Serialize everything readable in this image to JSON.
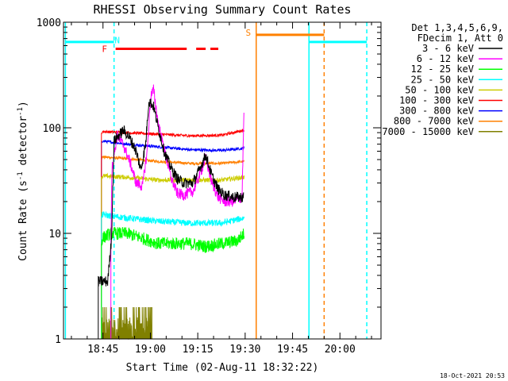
{
  "chart_data": {
    "type": "line",
    "title": "RHESSI Observing Summary Count Rates",
    "xlabel": "Start Time (02-Aug-11 18:32:22)",
    "ylabel_main": "Count Rate (s",
    "ylabel_sup1": "-1",
    "ylabel_mid": " detector",
    "ylabel_sup2": "-1",
    "ylabel_end": ")",
    "y_scale": "log",
    "ylim": [
      1,
      1000
    ],
    "xlim_minutes": [
      0,
      100.5
    ],
    "x_ticks": [
      {
        "min": 12.5,
        "label": "18:45"
      },
      {
        "min": 27.5,
        "label": "19:00"
      },
      {
        "min": 42.5,
        "label": "19:15"
      },
      {
        "min": 57.5,
        "label": "19:30"
      },
      {
        "min": 72.5,
        "label": "19:45"
      },
      {
        "min": 87.5,
        "label": "20:00"
      }
    ],
    "y_ticks": [
      {
        "v": 1,
        "label": "1"
      },
      {
        "v": 10,
        "label": "10"
      },
      {
        "v": 100,
        "label": "100"
      },
      {
        "v": 1000,
        "label": "1000"
      }
    ],
    "legend": {
      "position": "right",
      "header": [
        "Det 1,3,4,5,6,9,",
        "FDecim 1, Att 0"
      ],
      "entries": [
        {
          "label": "3 - 6 keV",
          "color": "#000000"
        },
        {
          "label": "6 - 12 keV",
          "color": "#ff00ff"
        },
        {
          "label": "12 - 25 keV",
          "color": "#00ff00"
        },
        {
          "label": "25 - 50 keV",
          "color": "#00ffff"
        },
        {
          "label": "50 - 100 keV",
          "color": "#cccc00"
        },
        {
          "label": "100 - 300 keV",
          "color": "#ff0000"
        },
        {
          "label": "300 - 800 keV",
          "color": "#0000ff"
        },
        {
          "label": "800 - 7000 keV",
          "color": "#ff8000"
        },
        {
          "label": "7000 - 15000 keV",
          "color": "#808000"
        }
      ]
    },
    "series": [
      {
        "name": "3 - 6 keV",
        "color": "#000000",
        "noise": 0.12,
        "x": [
          11.0,
          14.0,
          15.2,
          16.0,
          19.0,
          21.0,
          23.0,
          24.5,
          26.0,
          27.0,
          28.5,
          30.0,
          32.0,
          34.0,
          36.0,
          38.0,
          41.0,
          43.0,
          45.0,
          47.0,
          49.0,
          51.0,
          54.0,
          57.0
        ],
        "y": [
          3.5,
          3.5,
          9.0,
          75,
          95,
          80,
          60,
          40,
          70,
          180,
          160,
          100,
          58,
          42,
          33,
          30,
          30,
          40,
          55,
          35,
          26,
          23,
          22,
          22
        ]
      },
      {
        "name": "6 - 12 keV",
        "color": "#ff00ff",
        "noise": 0.12,
        "x": [
          15.0,
          15.3,
          17.0,
          19.0,
          21.0,
          23.0,
          25.0,
          26.5,
          27.6,
          28.5,
          30.0,
          32.0,
          34.0,
          36.0,
          38.0,
          41.0,
          43.0,
          45.0,
          47.0,
          49.0,
          51.0,
          54.0,
          56.5,
          57.2
        ],
        "y": [
          8,
          40,
          85,
          68,
          48,
          30,
          28,
          60,
          200,
          230,
          110,
          60,
          34,
          24,
          23,
          25,
          35,
          52,
          30,
          22,
          20,
          20,
          22,
          180
        ]
      },
      {
        "name": "12 - 25 keV",
        "color": "#00ff00",
        "noise": 0.14,
        "x": [
          12.0,
          12.3,
          15.0,
          20.0,
          25.0,
          30.0,
          35.0,
          40.0,
          45.0,
          50.0,
          55.0,
          57.2
        ],
        "y": [
          8,
          9,
          10,
          10,
          9,
          8,
          8,
          8,
          7.5,
          8,
          8.5,
          10
        ]
      },
      {
        "name": "25 - 50 keV",
        "color": "#00ffff",
        "noise": 0.07,
        "x": [
          12.0,
          12.3,
          20.0,
          30.0,
          40.0,
          50.0,
          57.2
        ],
        "y": [
          14,
          15,
          14,
          13,
          12.5,
          12.5,
          14
        ]
      },
      {
        "name": "50 - 100 keV",
        "color": "#cccc00",
        "noise": 0.05,
        "x": [
          12.0,
          12.3,
          20.0,
          30.0,
          40.0,
          50.0,
          57.2
        ],
        "y": [
          33,
          35,
          34,
          32,
          32,
          32,
          34
        ]
      },
      {
        "name": "100 - 300 keV",
        "color": "#ff0000",
        "noise": 0.03,
        "x": [
          12.0,
          12.3,
          20.0,
          30.0,
          40.0,
          50.0,
          57.2
        ],
        "y": [
          88,
          92,
          90,
          87,
          84,
          85,
          95
        ]
      },
      {
        "name": "300 - 800 keV",
        "color": "#0000ff",
        "noise": 0.03,
        "x": [
          12.0,
          12.3,
          20.0,
          30.0,
          40.0,
          50.0,
          57.2
        ],
        "y": [
          72,
          75,
          70,
          66,
          62,
          61,
          64
        ]
      },
      {
        "name": "800 - 7000 keV",
        "color": "#ff8000",
        "noise": 0.03,
        "x": [
          12.0,
          12.3,
          20.0,
          30.0,
          40.0,
          50.0,
          57.2
        ],
        "y": [
          50,
          53,
          51,
          48,
          46,
          46,
          48
        ]
      }
    ],
    "noise_band": {
      "name": "7000 - 15000 keV",
      "color": "#808000",
      "x": [
        12.0,
        28.0
      ],
      "y_min": 1,
      "y_max": 2.0
    },
    "vertical_lines": [
      {
        "x": 0.6,
        "color": "#00ffff",
        "dash": false
      },
      {
        "x": 16.0,
        "color": "#00ffff",
        "dash": true
      },
      {
        "x": 61.0,
        "color": "#ff8000",
        "dash": false
      },
      {
        "x": 77.7,
        "color": "#00ffff",
        "dash": false
      },
      {
        "x": 82.5,
        "color": "#ff8000",
        "dash": true
      },
      {
        "x": 96.0,
        "color": "#00ffff",
        "dash": true
      }
    ],
    "flag_segments": [
      {
        "x0": 0.6,
        "x1": 16.0,
        "y": 650,
        "color": "#00ffff"
      },
      {
        "x0": 77.7,
        "x1": 96.0,
        "y": 650,
        "color": "#00ffff"
      },
      {
        "x0": 61.0,
        "x1": 82.5,
        "y": 760,
        "color": "#ff8000"
      },
      {
        "x0": 16.5,
        "x1": 39.0,
        "y": 560,
        "color": "#ff0000"
      },
      {
        "x0": 42.0,
        "x1": 45.0,
        "y": 560,
        "color": "#ff0000"
      },
      {
        "x0": 46.5,
        "x1": 49.0,
        "y": 560,
        "color": "#ff0000"
      }
    ],
    "flag_labels": [
      {
        "text": "N",
        "x": 17.0,
        "y": 680,
        "color": "#00ffff"
      },
      {
        "text": "S",
        "x": 58.5,
        "y": 800,
        "color": "#ff8000"
      },
      {
        "text": "F",
        "x": 13.0,
        "y": 560,
        "color": "#ff0000"
      }
    ]
  },
  "footer": {
    "timestamp": "18-Oct-2021 20:53"
  }
}
